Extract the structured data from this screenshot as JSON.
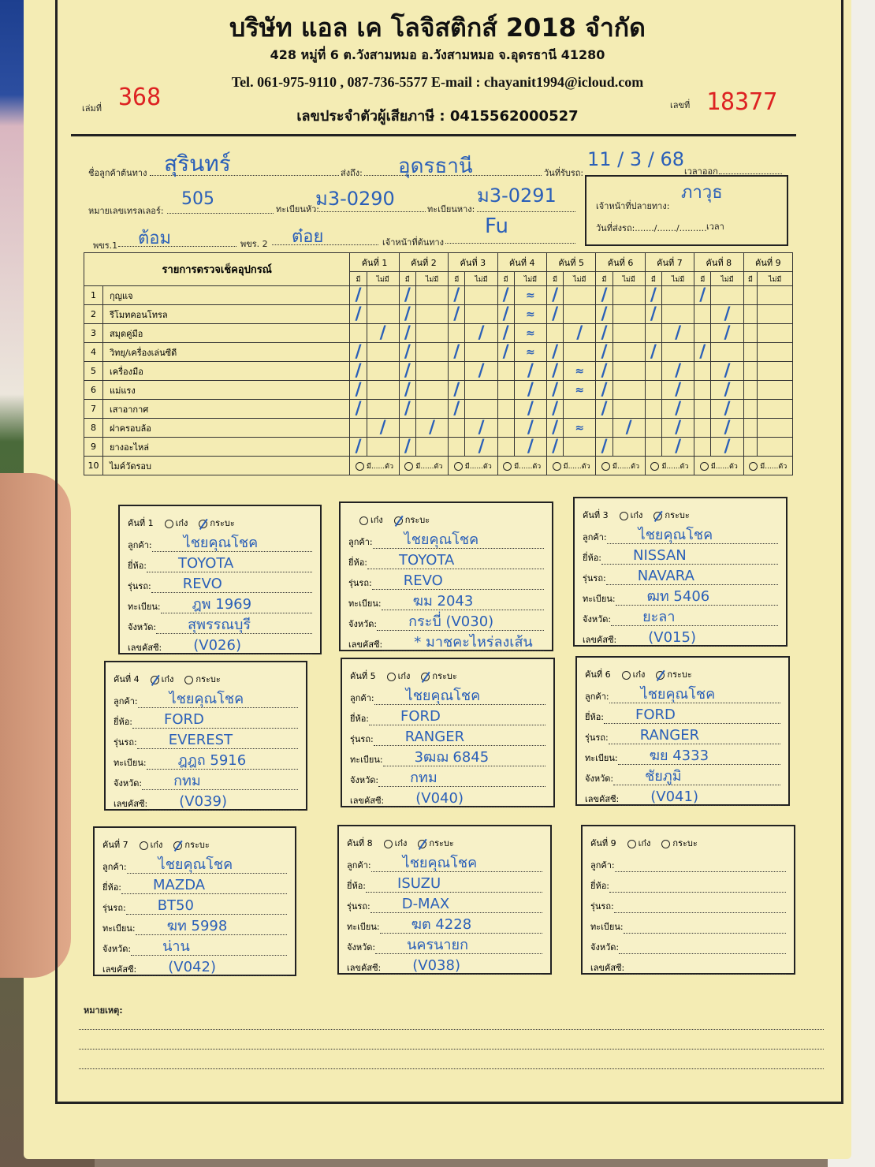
{
  "header": {
    "company": "บริษัท แอล เค โลจิสติกส์ 2018 จำกัด",
    "address": "428 หมู่ที่ 6 ต.วังสามหมอ อ.วังสามหมอ จ.อุดรธานี 41280",
    "contact": "Tel. 061-975-9110 , 087-736-5577  E-mail : chayanit1994@icloud.com",
    "tax_id": "เลขประจำตัวผู้เสียภาษี : 0415562000527",
    "book_label": "เล่มที่",
    "book_no": "368",
    "doc_label": "เลขที่",
    "doc_no": "18377"
  },
  "info": {
    "origin_label": "ชื่อลูกค้าต้นทาง",
    "origin": "สุรินทร์",
    "dest_label": "ส่งถึง:",
    "dest": "อุดรธานี",
    "date_label": "วันที่รับรถ:",
    "date": "11 / 3 / 68",
    "depart_label": "เวลาออก",
    "trailer_label": "หมายเลขเทรลเลอร์:",
    "trailer": "505",
    "head_plate_label": "ทะเบียนหัว:",
    "head_plate": "ม3-0290",
    "tail_plate_label": "ทะเบียนหาง:",
    "tail_plate": "ม3-0291",
    "driver1_label": "พขร.1",
    "driver1": "ต้อม",
    "driver2_label": "พขร. 2",
    "driver2": "ต๋อย",
    "origin_staff_label": "เจ้าหน้าที่ต้นทาง",
    "origin_staff": "Fu",
    "dest_staff_label": "เจ้าหน้าที่ปลายทาง:",
    "dest_staff": "ภาวุธ",
    "delivery_label": "วันที่ส่งรถ:......./......./..........",
    "time_label": "เวลา"
  },
  "checklist": {
    "title": "รายการตรวจเช็คอุปกรณ์",
    "cars": [
      "คันที่ 1",
      "คันที่ 2",
      "คันที่ 3",
      "คันที่ 4",
      "คันที่ 5",
      "คันที่ 6",
      "คันที่ 7",
      "คันที่ 8",
      "คันที่ 9"
    ],
    "have": "มี",
    "not": "ไม่มี",
    "count_label": "มี......ตัว",
    "items": [
      {
        "no": "1",
        "name": "กุญแจ",
        "marks": [
          "H",
          "H",
          "H",
          "HN",
          "H",
          "H",
          "H",
          "H",
          ""
        ]
      },
      {
        "no": "2",
        "name": "รีโมทคอนโทรล",
        "marks": [
          "H",
          "H",
          "H",
          "HN",
          "H",
          "H",
          "H",
          "N",
          ""
        ]
      },
      {
        "no": "3",
        "name": "สมุดคู่มือ",
        "marks": [
          "N",
          "H",
          "N",
          "HN",
          "N",
          "H",
          "N",
          "N",
          ""
        ]
      },
      {
        "no": "4",
        "name": "วิทยุ/เครื่องเล่นซีดี",
        "marks": [
          "H",
          "H",
          "H",
          "HN",
          "H",
          "H",
          "H",
          "H",
          ""
        ]
      },
      {
        "no": "5",
        "name": "เครื่องมือ",
        "marks": [
          "H",
          "H",
          "N",
          "N",
          "HN",
          "H",
          "N",
          "N",
          ""
        ]
      },
      {
        "no": "6",
        "name": "แม่แรง",
        "marks": [
          "H",
          "H",
          "H",
          "N",
          "HN",
          "H",
          "N",
          "N",
          ""
        ]
      },
      {
        "no": "7",
        "name": "เสาอากาศ",
        "marks": [
          "H",
          "H",
          "H",
          "N",
          "H",
          "H",
          "N",
          "N",
          ""
        ]
      },
      {
        "no": "8",
        "name": "ฝาครอบล้อ",
        "marks": [
          "N",
          "N",
          "N",
          "N",
          "HN",
          "N",
          "N",
          "N",
          ""
        ]
      },
      {
        "no": "9",
        "name": "ยางอะไหล่",
        "marks": [
          "H",
          "H",
          "N",
          "N",
          "H",
          "H",
          "N",
          "N",
          ""
        ]
      },
      {
        "no": "10",
        "name": "ไมค์วัดรอบ",
        "marks": []
      }
    ]
  },
  "vehicles_labels": {
    "sedan": "เก๋ง",
    "pickup": "กระบะ",
    "customer": "ลูกค้า:",
    "brand": "ยี่ห้อ:",
    "model": "รุ่นรถ:",
    "plate": "ทะเบียน:",
    "province": "จังหวัด:",
    "vin": "เลขคัสซี:"
  },
  "vehicles": [
    {
      "title": "คันที่ 1",
      "type": "pickup",
      "customer": "ไชยคุณโชค",
      "brand": "TOYOTA",
      "model": "REVO",
      "plate": "ฎพ 1969",
      "province": "สุพรรณบุรี",
      "vin": "(V026)"
    },
    {
      "title": "",
      "type": "pickup",
      "customer": "ไชยคุณโชค",
      "brand": "TOYOTA",
      "model": "REVO",
      "plate": "ฆม 2043",
      "province": "กระบี่ (V030)",
      "vin": "* มาชคะไหร่ลงเส้น"
    },
    {
      "title": "คันที่ 3",
      "type": "pickup",
      "customer": "ไชยคุณโชค",
      "brand": "NISSAN",
      "model": "NAVARA",
      "plate": "ฒท 5406",
      "province": "ยะลา",
      "vin": "(V015)"
    },
    {
      "title": "คันที่ 4",
      "type": "sedan",
      "customer": "ไชยคุณโชค",
      "brand": "FORD",
      "model": "EVEREST",
      "plate": "ฎฎถ 5916",
      "province": "กทม",
      "vin": "(V039)"
    },
    {
      "title": "คันที่ 5",
      "type": "pickup",
      "customer": "ไชยคุณโชค",
      "brand": "FORD",
      "model": "RANGER",
      "plate": "3ฒฌ 6845",
      "province": "กทม",
      "vin": "(V040)"
    },
    {
      "title": "คันที่ 6",
      "type": "pickup",
      "customer": "ไชยคุณโชค",
      "brand": "FORD",
      "model": "RANGER",
      "plate": "ฆย 4333",
      "province": "ชัยภูมิ",
      "vin": "(V041)"
    },
    {
      "title": "คันที่ 7",
      "type": "pickup",
      "customer": "ไชยคุณโชค",
      "brand": "MAZDA",
      "model": "BT50",
      "plate": "ฆท 5998",
      "province": "น่าน",
      "vin": "(V042)"
    },
    {
      "title": "คันที่ 8",
      "type": "pickup",
      "customer": "ไชยคุณโชค",
      "brand": "ISUZU",
      "model": "D-MAX",
      "plate": "ฆต 4228",
      "province": "นครนายก",
      "vin": "(V038)"
    },
    {
      "title": "คันที่ 9",
      "type": "",
      "customer": "",
      "brand": "",
      "model": "",
      "plate": "",
      "province": "",
      "vin": ""
    }
  ],
  "remarks_label": "หมายเหตุ:"
}
